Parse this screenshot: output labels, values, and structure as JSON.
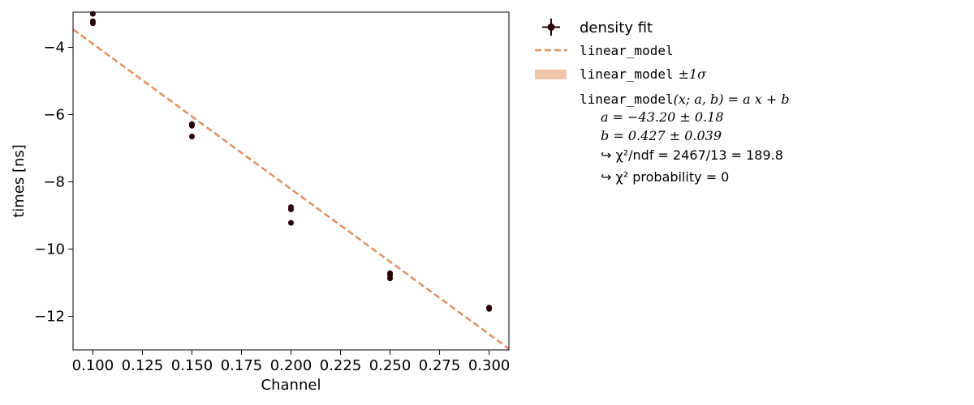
{
  "chart_data": {
    "type": "scatter",
    "xlabel": "Channel",
    "ylabel": "times [ns]",
    "xlim": [
      0.09,
      0.31
    ],
    "ylim": [
      -13.0,
      -2.95
    ],
    "xticks": [
      0.1,
      0.125,
      0.15,
      0.175,
      0.2,
      0.225,
      0.25,
      0.275,
      0.3
    ],
    "xtick_labels": [
      "0.100",
      "0.125",
      "0.150",
      "0.175",
      "0.200",
      "0.225",
      "0.250",
      "0.275",
      "0.300"
    ],
    "yticks": [
      -12,
      -10,
      -8,
      -6,
      -4
    ],
    "ytick_labels": [
      "−12",
      "−10",
      "−8",
      "−6",
      "−4"
    ],
    "grid": false,
    "legend_position": "outside-right",
    "colors": {
      "points": "#2a0008",
      "model": "#e0905f",
      "band": "#f0c4a8",
      "axes": "#000000"
    },
    "series": [
      {
        "name": "density fit",
        "kind": "points",
        "x": [
          0.1,
          0.1,
          0.1,
          0.15,
          0.15,
          0.15,
          0.2,
          0.2,
          0.2,
          0.25,
          0.25,
          0.25,
          0.3,
          0.3
        ],
        "y": [
          -3.0,
          -3.22,
          -3.28,
          -6.28,
          -6.33,
          -6.65,
          -8.75,
          -8.82,
          -9.22,
          -10.72,
          -10.78,
          -10.87,
          -11.74,
          -11.78
        ]
      },
      {
        "name": "linear_model",
        "kind": "line",
        "a": -43.2,
        "b": 0.427
      }
    ],
    "legend": {
      "points_label": "density fit",
      "line_label": "linear_model",
      "band_label_mono": "linear_model",
      "band_label_suffix": "±1σ",
      "model_name": "linear_model",
      "model_formula": "(x; a, b) = a x + b",
      "param_a": "a = −43.20 ± 0.18",
      "param_b": "b = 0.427 ± 0.039",
      "chi2_ndf": "↪ χ²/ndf = 2467/13 = 189.8",
      "chi2_prob": "↪ χ² probability = 0"
    }
  }
}
